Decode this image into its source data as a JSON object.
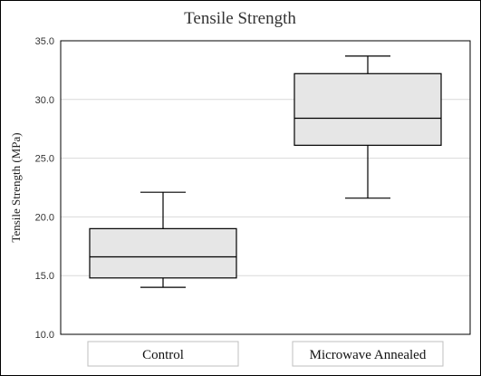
{
  "chart_data": {
    "type": "box",
    "title": "Tensile Strength",
    "ylabel": "Tensile Strength (MPa)",
    "xlabel": "",
    "ylim": [
      10.0,
      35.0
    ],
    "yticks": [
      10.0,
      15.0,
      20.0,
      25.0,
      30.0,
      35.0
    ],
    "ytick_labels": [
      "10.0",
      "15.0",
      "20.0",
      "25.0",
      "30.0",
      "35.0"
    ],
    "grid": true,
    "categories": [
      "Control",
      "Microwave Annealed"
    ],
    "boxes": [
      {
        "category": "Control",
        "min": 14.0,
        "q1": 14.8,
        "median": 16.6,
        "q3": 19.0,
        "max": 22.1
      },
      {
        "category": "Microwave Annealed",
        "min": 21.6,
        "q1": 26.1,
        "median": 28.4,
        "q3": 32.2,
        "max": 33.7
      }
    ],
    "colors": {
      "box_fill": "#e6e6e6",
      "box_stroke": "#000000",
      "grid": "#d9d9d9"
    }
  }
}
